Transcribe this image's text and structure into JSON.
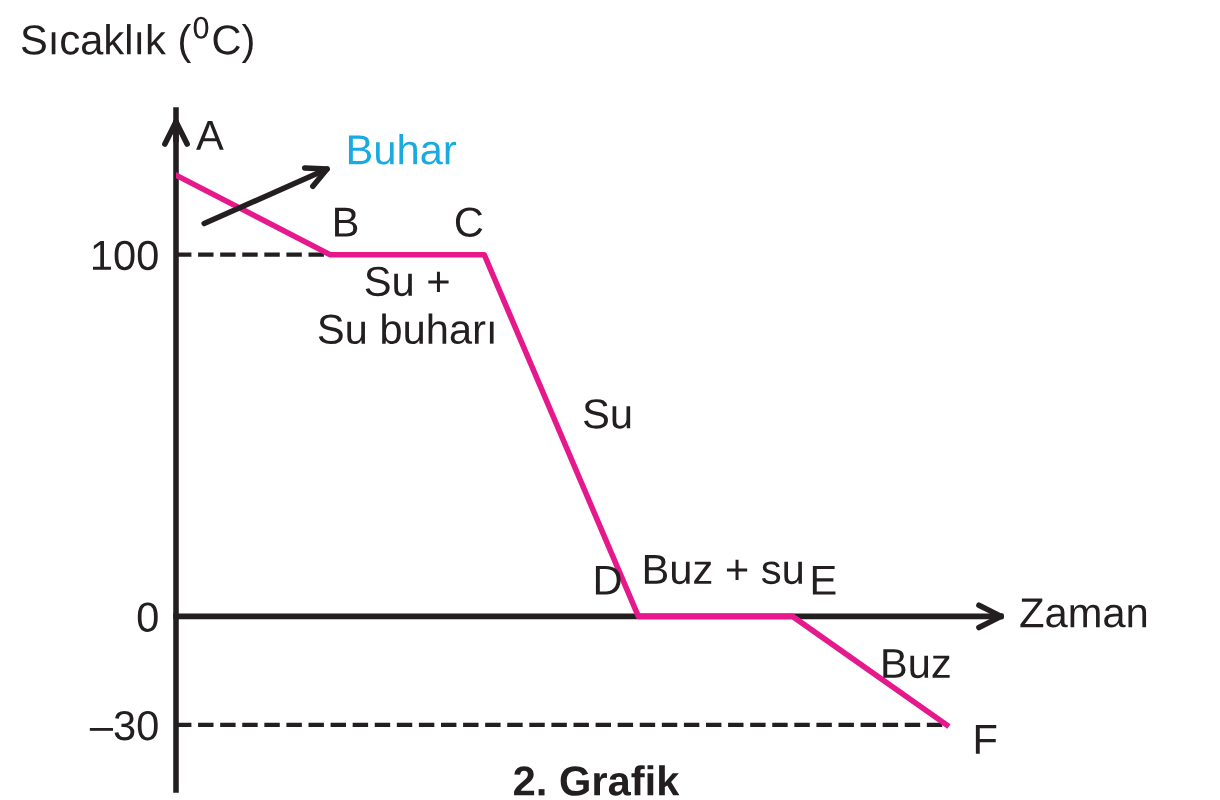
{
  "chart_data": {
    "type": "line",
    "title": "2. Grafik",
    "ylabel": "Sıcaklık ($^{0}$C)",
    "xlabel": "Zaman",
    "categories": [
      null,
      null,
      null,
      null,
      null,
      null
    ],
    "series": [
      {
        "color": "#e5198c",
        "values": [
          122,
          100,
          100,
          0,
          0,
          -30
        ]
      }
    ],
    "ylim": [
      -48,
      140
    ],
    "yticks": [
      100,
      0,
      {
        "value": -30,
        "label": "–30"
      }
    ],
    "ref_lines": [
      {
        "axis": "y",
        "value": 100,
        "line_style": "dashed",
        "color": "#231f20"
      },
      {
        "axis": "y",
        "value": -30,
        "line_style": "dashed",
        "color": "#231f20"
      }
    ],
    "annotations": [
      "Buhar",
      "Su +\nSu buharı",
      "Su",
      "Buz + su",
      "Buz",
      "A",
      "B",
      "C",
      "D",
      "E",
      "F"
    ],
    "grid": false,
    "legend": false,
    "marker": "none",
    "line_style": "solid"
  }
}
